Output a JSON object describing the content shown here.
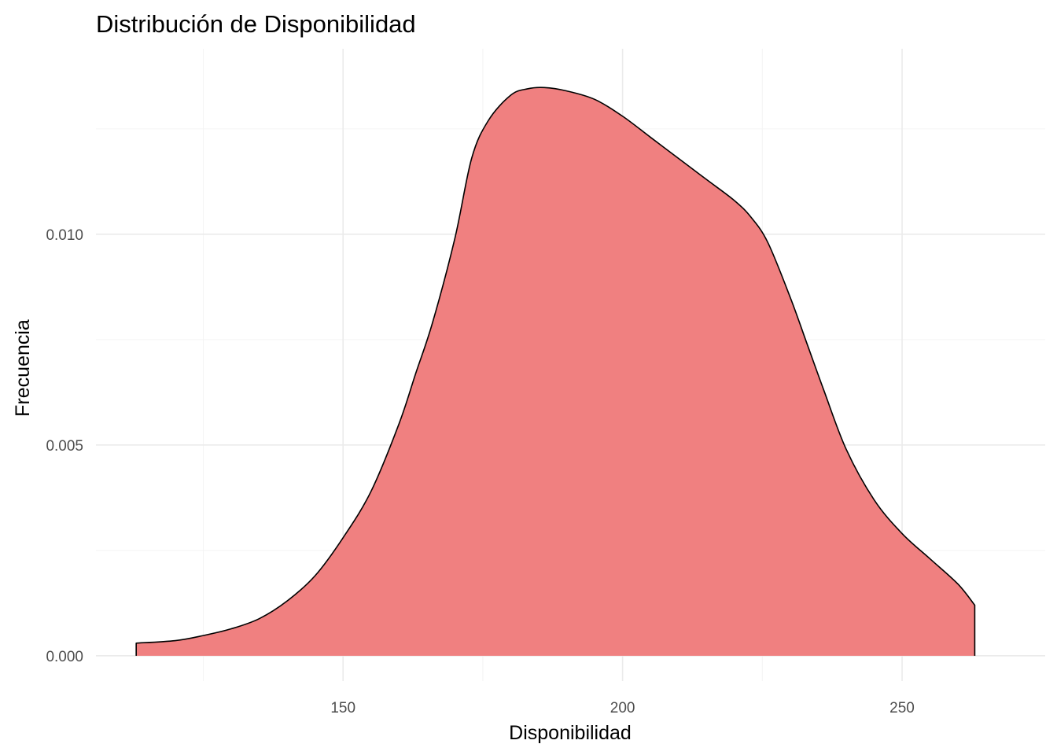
{
  "chart_data": {
    "type": "area",
    "title": "Distribución de Disponibilidad",
    "xlabel": "Disponibilidad",
    "ylabel": "Frecuencia",
    "xlim": [
      105.8,
      275.6
    ],
    "ylim": [
      -0.0006,
      0.0144
    ],
    "x_ticks": [
      150,
      200,
      250
    ],
    "x_tick_labels": [
      "150",
      "200",
      "250"
    ],
    "x_minor_ticks": [
      125,
      175,
      225
    ],
    "y_ticks": [
      0.0,
      0.005,
      0.01
    ],
    "y_tick_labels": [
      "0.000",
      "0.005",
      "0.010"
    ],
    "y_minor_ticks": [
      0.0025,
      0.0075,
      0.0125
    ],
    "grid": true,
    "fill_color": "#f08080",
    "line_color": "#000000",
    "series": [
      {
        "x": [
          113,
          120,
          125,
          130,
          135,
          140,
          145,
          150,
          155,
          160,
          163,
          166,
          170,
          173,
          176,
          180,
          183,
          186,
          190,
          195,
          200,
          205,
          210,
          215,
          220,
          223,
          226,
          230,
          233,
          236,
          240,
          245,
          250,
          255,
          260,
          263
        ],
        "y": [
          0.0003,
          0.00036,
          0.00048,
          0.00064,
          0.00088,
          0.0013,
          0.0019,
          0.0028,
          0.0039,
          0.0055,
          0.0067,
          0.0079,
          0.0099,
          0.0118,
          0.0127,
          0.0133,
          0.01345,
          0.01348,
          0.0134,
          0.0132,
          0.0128,
          0.0123,
          0.0118,
          0.0113,
          0.0108,
          0.0104,
          0.0098,
          0.0085,
          0.0074,
          0.0063,
          0.0049,
          0.0037,
          0.0029,
          0.0023,
          0.0017,
          0.0012
        ]
      }
    ]
  }
}
